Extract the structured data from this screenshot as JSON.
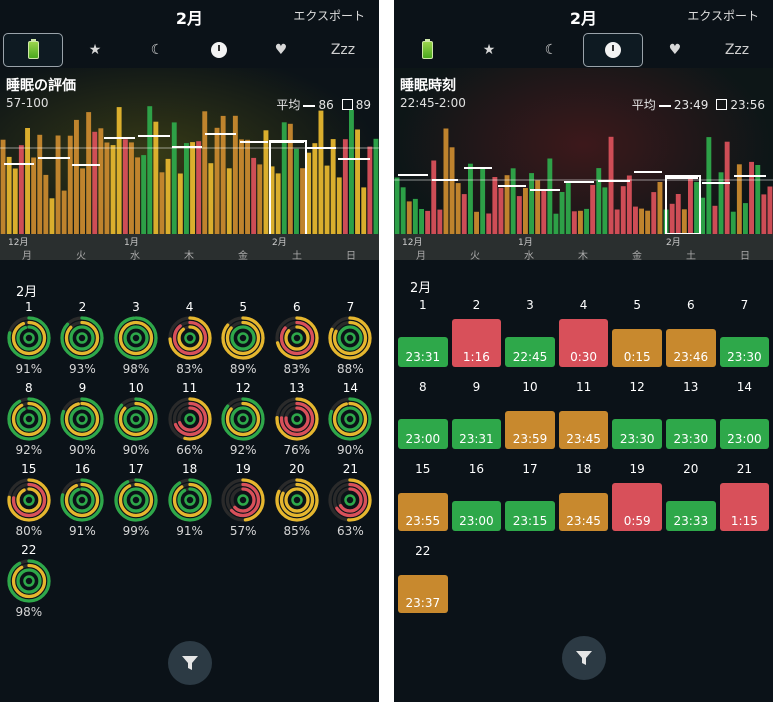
{
  "colors": {
    "green": "#2ea84a",
    "orange": "#c8892e",
    "red": "#d8505a",
    "yellow": "#e5b62e"
  },
  "left": {
    "month_title": "2月",
    "export_label": "エクスポート",
    "tabs": [
      {
        "icon": "battery-icon",
        "active": true
      },
      {
        "icon": "star-icon",
        "glyph": "★"
      },
      {
        "icon": "moon-icon",
        "glyph": "☾"
      },
      {
        "icon": "clock-icon"
      },
      {
        "icon": "heart-icon",
        "glyph": "♥"
      },
      {
        "icon": "zzz-icon",
        "glyph": "Zzz"
      }
    ],
    "chart": {
      "title": "睡眠の評価",
      "range": "57-100",
      "avg_label": "平均",
      "avg_value": "86",
      "box_value": "89",
      "month_labels": [
        "12月",
        "1月",
        "2月"
      ],
      "weekdays": [
        "月",
        "火",
        "水",
        "木",
        "金",
        "土",
        "日"
      ]
    },
    "section_month": "2月",
    "days": [
      {
        "day": "1",
        "pct": "91%"
      },
      {
        "day": "2",
        "pct": "93%"
      },
      {
        "day": "3",
        "pct": "98%"
      },
      {
        "day": "4",
        "pct": "83%"
      },
      {
        "day": "5",
        "pct": "89%"
      },
      {
        "day": "6",
        "pct": "83%"
      },
      {
        "day": "7",
        "pct": "88%"
      },
      {
        "day": "8",
        "pct": "92%"
      },
      {
        "day": "9",
        "pct": "90%"
      },
      {
        "day": "10",
        "pct": "90%"
      },
      {
        "day": "11",
        "pct": "66%"
      },
      {
        "day": "12",
        "pct": "92%"
      },
      {
        "day": "13",
        "pct": "76%"
      },
      {
        "day": "14",
        "pct": "90%"
      },
      {
        "day": "15",
        "pct": "80%"
      },
      {
        "day": "16",
        "pct": "91%"
      },
      {
        "day": "17",
        "pct": "99%"
      },
      {
        "day": "18",
        "pct": "91%"
      },
      {
        "day": "19",
        "pct": "57%"
      },
      {
        "day": "20",
        "pct": "85%"
      },
      {
        "day": "21",
        "pct": "63%"
      },
      {
        "day": "22",
        "pct": "98%"
      }
    ]
  },
  "right": {
    "month_title": "2月",
    "export_label": "エクスポート",
    "tabs": [
      {
        "icon": "battery-icon"
      },
      {
        "icon": "star-icon",
        "glyph": "★"
      },
      {
        "icon": "moon-icon",
        "glyph": "☾"
      },
      {
        "icon": "clock-icon",
        "active": true
      },
      {
        "icon": "heart-icon",
        "glyph": "♥"
      },
      {
        "icon": "zzz-icon",
        "glyph": "Zzz"
      }
    ],
    "chart": {
      "title": "睡眠時刻",
      "range": "22:45-2:00",
      "avg_label": "平均",
      "avg_value": "23:49",
      "box_value": "23:56",
      "month_labels": [
        "12月",
        "1月",
        "2月"
      ],
      "weekdays": [
        "月",
        "火",
        "水",
        "木",
        "金",
        "土",
        "日"
      ]
    },
    "section_month": "2月",
    "days": [
      {
        "day": "1",
        "time": "23:31",
        "color": "green"
      },
      {
        "day": "2",
        "time": "1:16",
        "color": "red"
      },
      {
        "day": "3",
        "time": "22:45",
        "color": "green"
      },
      {
        "day": "4",
        "time": "0:30",
        "color": "red"
      },
      {
        "day": "5",
        "time": "0:15",
        "color": "orange"
      },
      {
        "day": "6",
        "time": "23:46",
        "color": "orange"
      },
      {
        "day": "7",
        "time": "23:30",
        "color": "green"
      },
      {
        "day": "8",
        "time": "23:00",
        "color": "green"
      },
      {
        "day": "9",
        "time": "23:31",
        "color": "green"
      },
      {
        "day": "10",
        "time": "23:59",
        "color": "orange"
      },
      {
        "day": "11",
        "time": "23:45",
        "color": "orange"
      },
      {
        "day": "12",
        "time": "23:30",
        "color": "green"
      },
      {
        "day": "13",
        "time": "23:30",
        "color": "green"
      },
      {
        "day": "14",
        "time": "23:00",
        "color": "green"
      },
      {
        "day": "15",
        "time": "23:55",
        "color": "orange"
      },
      {
        "day": "16",
        "time": "23:00",
        "color": "green"
      },
      {
        "day": "17",
        "time": "23:15",
        "color": "green"
      },
      {
        "day": "18",
        "time": "23:45",
        "color": "orange"
      },
      {
        "day": "19",
        "time": "0:59",
        "color": "red"
      },
      {
        "day": "20",
        "time": "23:33",
        "color": "green"
      },
      {
        "day": "21",
        "time": "1:15",
        "color": "red"
      },
      {
        "day": "22",
        "time": "23:37",
        "color": "orange"
      }
    ]
  }
}
